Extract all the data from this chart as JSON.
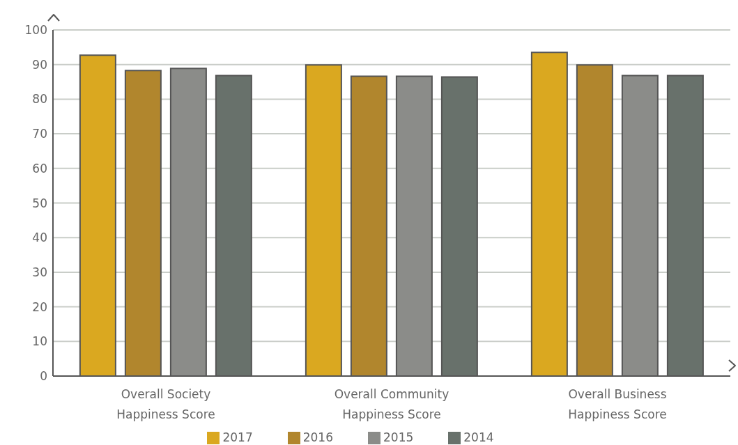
{
  "chart_data": {
    "type": "bar",
    "categories": [
      "Overall Society Happiness Score",
      "Overall Community Happiness Score",
      "Overall Business Happiness Score"
    ],
    "series": [
      {
        "name": "2017",
        "color": "#daa820",
        "values": [
          92.7,
          89.9,
          93.5
        ]
      },
      {
        "name": "2016",
        "color": "#b1862d",
        "values": [
          88.3,
          86.6,
          89.9
        ]
      },
      {
        "name": "2015",
        "color": "#8b8c89",
        "values": [
          88.9,
          86.6,
          86.8
        ]
      },
      {
        "name": "2014",
        "color": "#68716b",
        "values": [
          86.8,
          86.4,
          86.8
        ]
      }
    ],
    "ylim": [
      0,
      100
    ],
    "yticks": [
      0,
      10,
      20,
      30,
      40,
      50,
      60,
      70,
      80,
      90,
      100
    ],
    "grid": "y",
    "legend": "bottom"
  }
}
